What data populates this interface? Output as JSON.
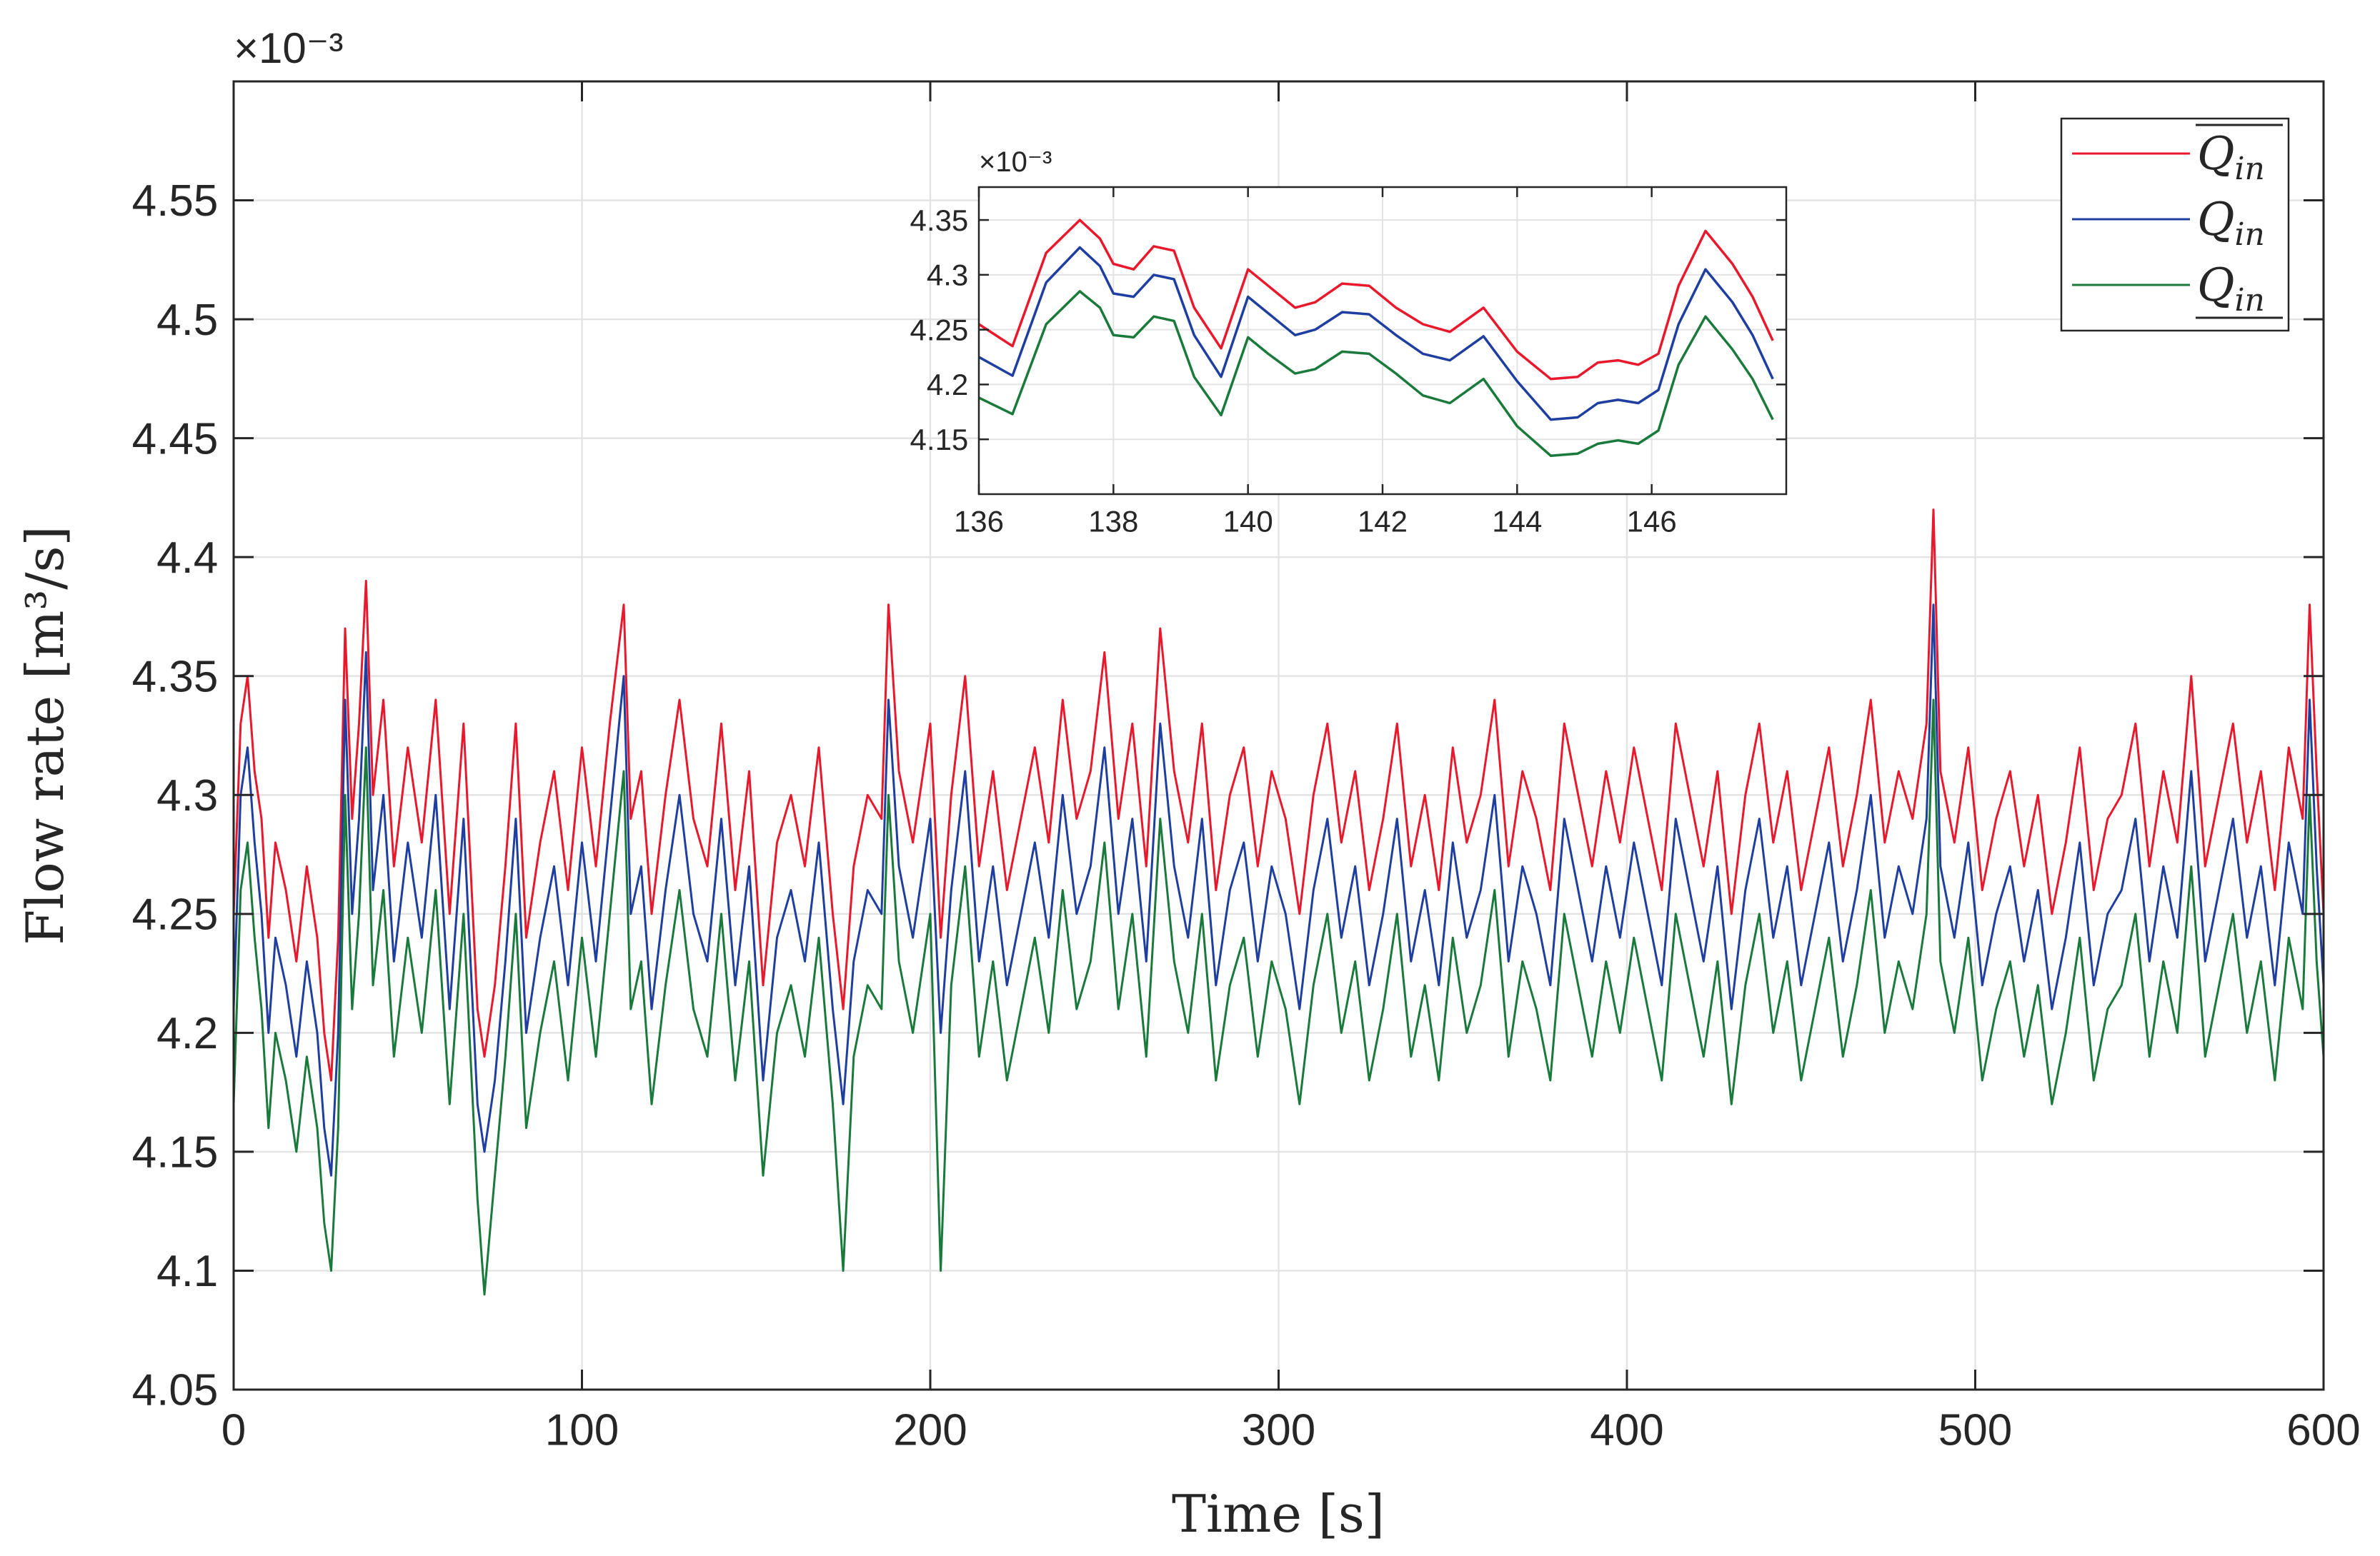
{
  "chart_data": {
    "type": "line",
    "main": {
      "title": "",
      "xlabel": "Time [s]",
      "ylabel": "Flow rate [m³/s]",
      "xlim": [
        0,
        600
      ],
      "ylim": [
        4.05,
        4.6
      ],
      "xticks": [
        0,
        100,
        200,
        300,
        400,
        500,
        600
      ],
      "xtick_labels": [
        "0",
        "100",
        "200",
        "300",
        "400",
        "500",
        "600"
      ],
      "yticks": [
        4.05,
        4.1,
        4.15,
        4.2,
        4.25,
        4.3,
        4.35,
        4.4,
        4.45,
        4.5,
        4.55
      ],
      "ytick_labels": [
        "4.05",
        "4.1",
        "4.15",
        "4.2",
        "4.25",
        "4.3",
        "4.35",
        "4.4",
        "4.45",
        "4.5",
        "4.55"
      ],
      "y_exponent": "×10⁻³",
      "grid": true,
      "x": [
        0,
        2,
        4,
        6,
        8,
        10,
        12,
        15,
        18,
        21,
        24,
        26,
        28,
        30,
        32,
        34,
        36,
        38,
        40,
        43,
        46,
        50,
        54,
        58,
        62,
        66,
        70,
        72,
        75,
        78,
        81,
        84,
        88,
        92,
        96,
        100,
        104,
        108,
        112,
        114,
        117,
        120,
        124,
        128,
        132,
        136,
        140,
        144,
        148,
        152,
        156,
        160,
        164,
        168,
        172,
        175,
        178,
        182,
        186,
        188,
        191,
        195,
        200,
        203,
        206,
        210,
        214,
        218,
        222,
        226,
        230,
        234,
        238,
        242,
        246,
        250,
        254,
        258,
        262,
        266,
        270,
        274,
        278,
        282,
        286,
        290,
        294,
        298,
        302,
        306,
        310,
        314,
        318,
        322,
        326,
        330,
        334,
        338,
        342,
        346,
        350,
        354,
        358,
        362,
        366,
        370,
        374,
        378,
        382,
        386,
        390,
        394,
        398,
        402,
        406,
        410,
        414,
        418,
        422,
        426,
        430,
        434,
        438,
        442,
        446,
        450,
        454,
        458,
        462,
        466,
        470,
        474,
        478,
        482,
        486,
        488,
        490,
        494,
        498,
        502,
        506,
        510,
        514,
        518,
        522,
        526,
        530,
        534,
        538,
        542,
        546,
        550,
        554,
        558,
        562,
        566,
        570,
        574,
        578,
        582,
        586,
        590,
        594,
        596,
        598,
        600
      ],
      "series": [
        {
          "name": "Q̄in (upper)",
          "color": "#e8192c",
          "values": [
            4.25,
            4.33,
            4.35,
            4.31,
            4.29,
            4.24,
            4.28,
            4.26,
            4.23,
            4.27,
            4.24,
            4.2,
            4.18,
            4.24,
            4.37,
            4.29,
            4.33,
            4.39,
            4.3,
            4.34,
            4.27,
            4.32,
            4.28,
            4.34,
            4.25,
            4.33,
            4.21,
            4.19,
            4.22,
            4.27,
            4.33,
            4.24,
            4.28,
            4.31,
            4.26,
            4.32,
            4.27,
            4.33,
            4.38,
            4.29,
            4.31,
            4.25,
            4.3,
            4.34,
            4.29,
            4.27,
            4.33,
            4.26,
            4.31,
            4.22,
            4.28,
            4.3,
            4.27,
            4.32,
            4.25,
            4.21,
            4.27,
            4.3,
            4.29,
            4.38,
            4.31,
            4.28,
            4.33,
            4.24,
            4.3,
            4.35,
            4.27,
            4.31,
            4.26,
            4.29,
            4.32,
            4.28,
            4.34,
            4.29,
            4.31,
            4.36,
            4.29,
            4.33,
            4.27,
            4.37,
            4.31,
            4.28,
            4.33,
            4.26,
            4.3,
            4.32,
            4.27,
            4.31,
            4.29,
            4.25,
            4.3,
            4.33,
            4.28,
            4.31,
            4.26,
            4.29,
            4.33,
            4.27,
            4.3,
            4.26,
            4.32,
            4.28,
            4.3,
            4.34,
            4.27,
            4.31,
            4.29,
            4.26,
            4.33,
            4.3,
            4.27,
            4.31,
            4.28,
            4.32,
            4.29,
            4.26,
            4.33,
            4.3,
            4.27,
            4.31,
            4.25,
            4.3,
            4.33,
            4.28,
            4.31,
            4.26,
            4.29,
            4.32,
            4.27,
            4.3,
            4.34,
            4.28,
            4.31,
            4.29,
            4.33,
            4.42,
            4.31,
            4.28,
            4.32,
            4.26,
            4.29,
            4.31,
            4.27,
            4.3,
            4.25,
            4.28,
            4.32,
            4.26,
            4.29,
            4.3,
            4.33,
            4.27,
            4.31,
            4.28,
            4.35,
            4.27,
            4.3,
            4.33,
            4.28,
            4.31,
            4.26,
            4.32,
            4.29,
            4.38,
            4.31,
            4.25
          ]
        },
        {
          "name": "Qin",
          "color": "#1f3fa0",
          "values": [
            4.21,
            4.3,
            4.32,
            4.28,
            4.25,
            4.2,
            4.24,
            4.22,
            4.19,
            4.23,
            4.2,
            4.16,
            4.14,
            4.2,
            4.34,
            4.25,
            4.29,
            4.36,
            4.26,
            4.3,
            4.23,
            4.28,
            4.24,
            4.3,
            4.21,
            4.29,
            4.17,
            4.15,
            4.18,
            4.23,
            4.29,
            4.2,
            4.24,
            4.27,
            4.22,
            4.28,
            4.23,
            4.29,
            4.35,
            4.25,
            4.27,
            4.21,
            4.26,
            4.3,
            4.25,
            4.23,
            4.29,
            4.22,
            4.27,
            4.18,
            4.24,
            4.26,
            4.23,
            4.28,
            4.21,
            4.17,
            4.23,
            4.26,
            4.25,
            4.34,
            4.27,
            4.24,
            4.29,
            4.2,
            4.26,
            4.31,
            4.23,
            4.27,
            4.22,
            4.25,
            4.28,
            4.24,
            4.3,
            4.25,
            4.27,
            4.32,
            4.25,
            4.29,
            4.23,
            4.33,
            4.27,
            4.24,
            4.29,
            4.22,
            4.26,
            4.28,
            4.23,
            4.27,
            4.25,
            4.21,
            4.26,
            4.29,
            4.24,
            4.27,
            4.22,
            4.25,
            4.29,
            4.23,
            4.26,
            4.22,
            4.28,
            4.24,
            4.26,
            4.3,
            4.23,
            4.27,
            4.25,
            4.22,
            4.29,
            4.26,
            4.23,
            4.27,
            4.24,
            4.28,
            4.25,
            4.22,
            4.29,
            4.26,
            4.23,
            4.27,
            4.21,
            4.26,
            4.29,
            4.24,
            4.27,
            4.22,
            4.25,
            4.28,
            4.23,
            4.26,
            4.3,
            4.24,
            4.27,
            4.25,
            4.29,
            4.38,
            4.27,
            4.24,
            4.28,
            4.22,
            4.25,
            4.27,
            4.23,
            4.26,
            4.21,
            4.24,
            4.28,
            4.22,
            4.25,
            4.26,
            4.29,
            4.23,
            4.27,
            4.24,
            4.31,
            4.23,
            4.26,
            4.29,
            4.24,
            4.27,
            4.22,
            4.28,
            4.25,
            4.34,
            4.27,
            4.22
          ]
        },
        {
          "name": "Q̲in (lower)",
          "color": "#1a7a3c",
          "values": [
            4.17,
            4.26,
            4.28,
            4.24,
            4.21,
            4.16,
            4.2,
            4.18,
            4.15,
            4.19,
            4.16,
            4.12,
            4.1,
            4.16,
            4.3,
            4.21,
            4.25,
            4.32,
            4.22,
            4.26,
            4.19,
            4.24,
            4.2,
            4.26,
            4.17,
            4.25,
            4.13,
            4.09,
            4.14,
            4.19,
            4.25,
            4.16,
            4.2,
            4.23,
            4.18,
            4.24,
            4.19,
            4.25,
            4.31,
            4.21,
            4.23,
            4.17,
            4.22,
            4.26,
            4.21,
            4.19,
            4.25,
            4.18,
            4.23,
            4.14,
            4.2,
            4.22,
            4.19,
            4.24,
            4.17,
            4.1,
            4.19,
            4.22,
            4.21,
            4.3,
            4.23,
            4.2,
            4.25,
            4.1,
            4.22,
            4.27,
            4.19,
            4.23,
            4.18,
            4.21,
            4.24,
            4.2,
            4.26,
            4.21,
            4.23,
            4.28,
            4.21,
            4.25,
            4.19,
            4.29,
            4.23,
            4.2,
            4.25,
            4.18,
            4.22,
            4.24,
            4.19,
            4.23,
            4.21,
            4.17,
            4.22,
            4.25,
            4.2,
            4.23,
            4.18,
            4.21,
            4.25,
            4.19,
            4.22,
            4.18,
            4.24,
            4.2,
            4.22,
            4.26,
            4.19,
            4.23,
            4.21,
            4.18,
            4.25,
            4.22,
            4.19,
            4.23,
            4.2,
            4.24,
            4.21,
            4.18,
            4.25,
            4.22,
            4.19,
            4.23,
            4.17,
            4.22,
            4.25,
            4.2,
            4.23,
            4.18,
            4.21,
            4.24,
            4.19,
            4.22,
            4.26,
            4.2,
            4.23,
            4.21,
            4.25,
            4.34,
            4.23,
            4.2,
            4.24,
            4.18,
            4.21,
            4.23,
            4.19,
            4.22,
            4.17,
            4.2,
            4.24,
            4.18,
            4.21,
            4.22,
            4.25,
            4.19,
            4.23,
            4.2,
            4.27,
            4.19,
            4.22,
            4.25,
            4.2,
            4.23,
            4.18,
            4.24,
            4.21,
            4.3,
            4.23,
            4.19
          ]
        }
      ]
    },
    "inset": {
      "xlim": [
        136,
        148
      ],
      "ylim": [
        4.1,
        4.38
      ],
      "xticks": [
        136,
        138,
        140,
        142,
        144,
        146
      ],
      "xtick_labels": [
        "136",
        "138",
        "140",
        "142",
        "144",
        "146"
      ],
      "yticks": [
        4.15,
        4.2,
        4.25,
        4.3,
        4.35
      ],
      "ytick_labels": [
        "4.15",
        "4.2",
        "4.25",
        "4.3",
        "4.35"
      ],
      "y_exponent": "×10⁻³",
      "grid": true,
      "x": [
        136,
        136.5,
        137,
        137.5,
        137.8,
        138,
        138.3,
        138.6,
        138.9,
        139.2,
        139.6,
        140,
        140.3,
        140.7,
        141,
        141.4,
        141.8,
        142.2,
        142.6,
        143,
        143.5,
        144,
        144.5,
        144.9,
        145.2,
        145.5,
        145.8,
        146.1,
        146.4,
        146.8,
        147.2,
        147.5,
        147.8
      ],
      "series": [
        {
          "name": "Q̄in (upper)",
          "color": "#e8192c",
          "values": [
            4.255,
            4.235,
            4.32,
            4.35,
            4.333,
            4.31,
            4.305,
            4.326,
            4.322,
            4.27,
            4.233,
            4.305,
            4.29,
            4.27,
            4.275,
            4.292,
            4.29,
            4.27,
            4.255,
            4.248,
            4.27,
            4.23,
            4.205,
            4.207,
            4.22,
            4.222,
            4.218,
            4.228,
            4.29,
            4.34,
            4.31,
            4.28,
            4.24
          ]
        },
        {
          "name": "Qin",
          "color": "#1f3fa0",
          "values": [
            4.225,
            4.208,
            4.293,
            4.325,
            4.308,
            4.283,
            4.28,
            4.3,
            4.296,
            4.245,
            4.207,
            4.28,
            4.265,
            4.245,
            4.25,
            4.266,
            4.264,
            4.245,
            4.228,
            4.222,
            4.244,
            4.203,
            4.168,
            4.17,
            4.183,
            4.186,
            4.183,
            4.195,
            4.255,
            4.305,
            4.275,
            4.245,
            4.205
          ]
        },
        {
          "name": "Q̲in (lower)",
          "color": "#1a7a3c",
          "values": [
            4.188,
            4.173,
            4.255,
            4.285,
            4.27,
            4.245,
            4.243,
            4.262,
            4.258,
            4.207,
            4.172,
            4.243,
            4.228,
            4.21,
            4.214,
            4.23,
            4.228,
            4.21,
            4.19,
            4.183,
            4.205,
            4.162,
            4.135,
            4.137,
            4.146,
            4.149,
            4.146,
            4.158,
            4.218,
            4.262,
            4.232,
            4.205,
            4.168
          ]
        }
      ]
    },
    "legend": {
      "placement": "top-right",
      "entries": [
        {
          "label": "Q̄in",
          "base": "Q",
          "sub": "in",
          "bar": "over",
          "color": "#e8192c"
        },
        {
          "label": "Qin",
          "base": "Q",
          "sub": "in",
          "bar": "none",
          "color": "#1f3fa0"
        },
        {
          "label": "Q̲in",
          "base": "Q",
          "sub": "in",
          "bar": "under",
          "color": "#1a7a3c"
        }
      ]
    }
  }
}
